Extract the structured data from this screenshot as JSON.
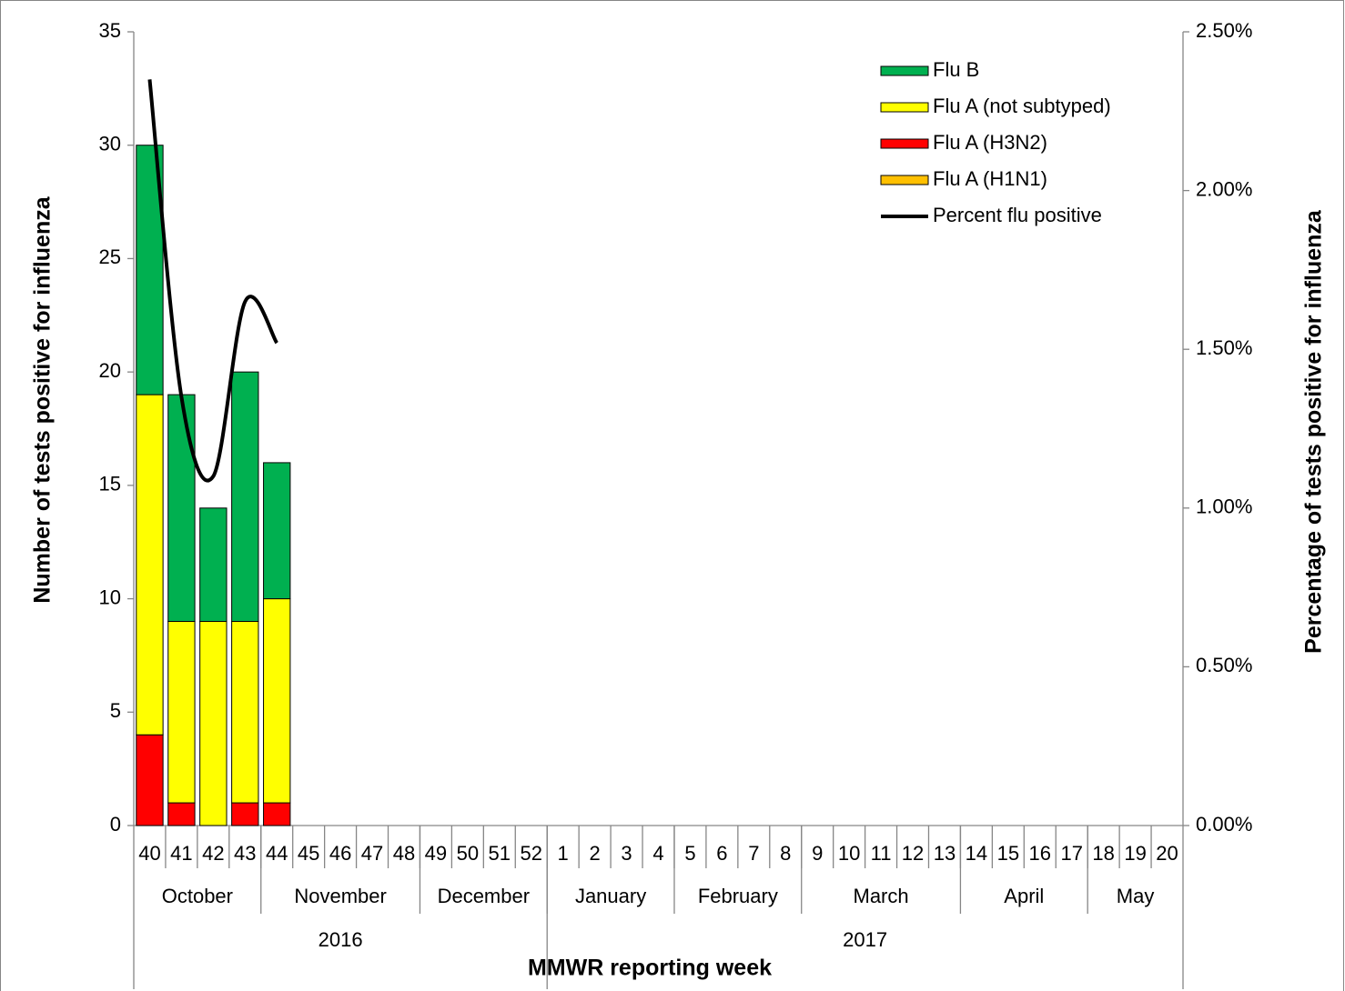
{
  "chart_data": {
    "type": "stacked-bar-line",
    "y_label": "Number of tests positive for influenza",
    "y2_label": "Percentage  of  tests  positive for influenza",
    "x_label": "MMWR reporting week",
    "categories": [
      "40",
      "41",
      "42",
      "43",
      "44",
      "45",
      "46",
      "47",
      "48",
      "49",
      "50",
      "51",
      "52",
      "1",
      "2",
      "3",
      "4",
      "5",
      "6",
      "7",
      "8",
      "9",
      "10",
      "11",
      "12",
      "13",
      "14",
      "15",
      "16",
      "17",
      "18",
      "19",
      "20"
    ],
    "months": [
      {
        "label": "October",
        "span": 4
      },
      {
        "label": "November",
        "span": 5
      },
      {
        "label": "December",
        "span": 4
      },
      {
        "label": "January",
        "span": 4
      },
      {
        "label": "February",
        "span": 4
      },
      {
        "label": "March",
        "span": 5
      },
      {
        "label": "April",
        "span": 4
      },
      {
        "label": "May",
        "span": 3
      }
    ],
    "years": [
      {
        "label": "2016",
        "span": 13
      },
      {
        "label": "2017",
        "span": 20
      }
    ],
    "series": [
      {
        "name": "Flu A (H1N1)",
        "color": "#FFC000",
        "values": [
          0,
          0,
          0,
          0,
          0,
          null,
          null,
          null,
          null,
          null,
          null,
          null,
          null,
          null,
          null,
          null,
          null,
          null,
          null,
          null,
          null,
          null,
          null,
          null,
          null,
          null,
          null,
          null,
          null,
          null,
          null,
          null,
          null
        ]
      },
      {
        "name": "Flu A (H3N2)",
        "color": "#FF0000",
        "values": [
          4,
          1,
          0,
          1,
          1,
          null,
          null,
          null,
          null,
          null,
          null,
          null,
          null,
          null,
          null,
          null,
          null,
          null,
          null,
          null,
          null,
          null,
          null,
          null,
          null,
          null,
          null,
          null,
          null,
          null,
          null,
          null,
          null
        ]
      },
      {
        "name": "Flu A (not subtyped)",
        "color": "#FFFF00",
        "values": [
          15,
          8,
          9,
          8,
          9,
          null,
          null,
          null,
          null,
          null,
          null,
          null,
          null,
          null,
          null,
          null,
          null,
          null,
          null,
          null,
          null,
          null,
          null,
          null,
          null,
          null,
          null,
          null,
          null,
          null,
          null,
          null,
          null
        ]
      },
      {
        "name": "Flu B",
        "color": "#00B050",
        "values": [
          11,
          10,
          5,
          11,
          6,
          null,
          null,
          null,
          null,
          null,
          null,
          null,
          null,
          null,
          null,
          null,
          null,
          null,
          null,
          null,
          null,
          null,
          null,
          null,
          null,
          null,
          null,
          null,
          null,
          null,
          null,
          null,
          null
        ]
      },
      {
        "name": "Percent flu positive",
        "color": "#000000",
        "axis": "y2",
        "type": "line",
        "values": [
          2.35,
          1.35,
          1.1,
          1.65,
          1.52,
          null,
          null,
          null,
          null,
          null,
          null,
          null,
          null,
          null,
          null,
          null,
          null,
          null,
          null,
          null,
          null,
          null,
          null,
          null,
          null,
          null,
          null,
          null,
          null,
          null,
          null,
          null,
          null
        ]
      }
    ],
    "ylim": [
      0,
      35
    ],
    "yticks": [
      0,
      5,
      10,
      15,
      20,
      25,
      30,
      35
    ],
    "y2lim": [
      0,
      2.5
    ],
    "y2ticks": [
      {
        "value": 0,
        "label": "0.00%"
      },
      {
        "value": 0.5,
        "label": "0.50%"
      },
      {
        "value": 1,
        "label": "1.00%"
      },
      {
        "value": 1.5,
        "label": "1.50%"
      },
      {
        "value": 2,
        "label": "2.00%"
      },
      {
        "value": 2.5,
        "label": "2.50%"
      }
    ],
    "grid": false,
    "legend": "top-right"
  }
}
